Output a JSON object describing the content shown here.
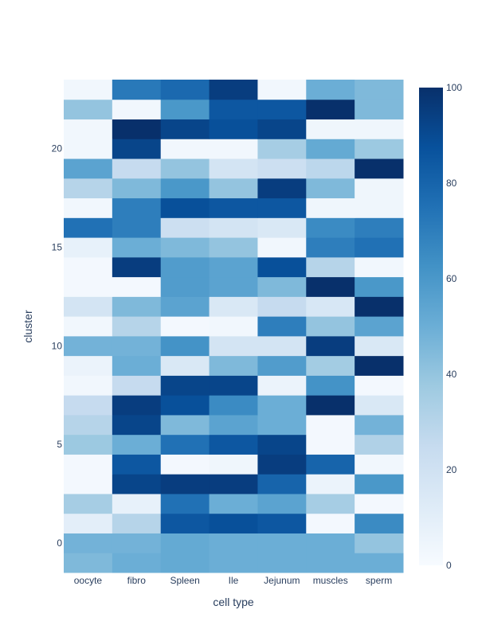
{
  "chart_data": {
    "type": "heatmap",
    "xlabel": "cell type",
    "ylabel": "cluster",
    "categories": [
      "oocyte",
      "fibro",
      "Spleen",
      "Ile",
      "Jejunum",
      "muscles",
      "sperm"
    ],
    "y": [
      -1,
      0,
      1,
      2,
      3,
      4,
      5,
      6,
      7,
      8,
      9,
      10,
      11,
      12,
      13,
      14,
      15,
      16,
      17,
      18,
      19,
      20,
      21,
      22,
      23
    ],
    "y_ticks": [
      0,
      5,
      10,
      15,
      20
    ],
    "ylim": [
      -1.5,
      23.5
    ],
    "colorscale": "Blues",
    "zlim": [
      0,
      100
    ],
    "colorbar_ticks": [
      0,
      20,
      40,
      60,
      80,
      100
    ],
    "z": [
      [
        45,
        50,
        52,
        50,
        50,
        50,
        50
      ],
      [
        48,
        48,
        52,
        50,
        50,
        50,
        40
      ],
      [
        10,
        30,
        85,
        88,
        85,
        2,
        65
      ],
      [
        35,
        8,
        75,
        50,
        55,
        35,
        2
      ],
      [
        2,
        92,
        95,
        95,
        80,
        6,
        60
      ],
      [
        2,
        85,
        2,
        4,
        95,
        80,
        3
      ],
      [
        38,
        50,
        75,
        85,
        92,
        2,
        32
      ],
      [
        30,
        92,
        45,
        55,
        50,
        2,
        48
      ],
      [
        25,
        95,
        88,
        65,
        50,
        100,
        15
      ],
      [
        3,
        25,
        92,
        92,
        6,
        62,
        2
      ],
      [
        6,
        50,
        15,
        45,
        58,
        36,
        100
      ],
      [
        48,
        48,
        62,
        18,
        18,
        95,
        15
      ],
      [
        3,
        30,
        2,
        3,
        70,
        40,
        55
      ],
      [
        18,
        45,
        55,
        15,
        25,
        16,
        100
      ],
      [
        2,
        2,
        58,
        55,
        45,
        100,
        60
      ],
      [
        2,
        95,
        58,
        55,
        88,
        30,
        3
      ],
      [
        8,
        50,
        45,
        40,
        3,
        70,
        75
      ],
      [
        75,
        70,
        22,
        18,
        15,
        65,
        70
      ],
      [
        3,
        70,
        88,
        85,
        85,
        4,
        4
      ],
      [
        30,
        45,
        60,
        40,
        95,
        45,
        4
      ],
      [
        55,
        25,
        40,
        18,
        22,
        28,
        100
      ],
      [
        3,
        92,
        3,
        3,
        35,
        52,
        38
      ],
      [
        3,
        100,
        92,
        88,
        92,
        4,
        4
      ],
      [
        40,
        3,
        60,
        85,
        85,
        100,
        45
      ],
      [
        3,
        72,
        78,
        95,
        3,
        50,
        45
      ]
    ]
  }
}
